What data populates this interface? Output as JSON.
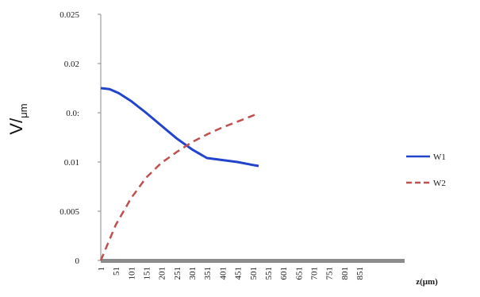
{
  "chart_data": {
    "type": "line",
    "ylabel_main": "V/",
    "ylabel_sub": "μm",
    "xlabel": "z(μm)",
    "ylim": [
      0,
      0.025
    ],
    "yticks": [
      "0",
      "0.005",
      "0.01",
      "0.0:",
      "0.02",
      "0.025"
    ],
    "ytick_values": [
      0,
      0.005,
      0.01,
      0.015,
      0.02,
      0.025
    ],
    "xlim": [
      1,
      900
    ],
    "xticks": [
      "1",
      "51",
      "101",
      "151",
      "201",
      "251",
      "301",
      "351",
      "401",
      "451",
      "501",
      "551",
      "601",
      "651",
      "701",
      "751",
      "801",
      "851"
    ],
    "xtick_values": [
      1,
      51,
      101,
      151,
      201,
      251,
      301,
      351,
      401,
      451,
      501,
      551,
      601,
      651,
      701,
      751,
      801,
      851
    ],
    "legend_position": "right",
    "series": [
      {
        "name": "W1",
        "color": "#2244cc",
        "dash": "solid",
        "x": [
          1,
          30,
          60,
          100,
          150,
          200,
          250,
          300,
          350,
          400,
          450,
          500,
          520
        ],
        "y": [
          0.0175,
          0.0174,
          0.017,
          0.0162,
          0.015,
          0.0137,
          0.0124,
          0.0113,
          0.0104,
          0.0102,
          0.01,
          0.0097,
          0.0096
        ]
      },
      {
        "name": "W2",
        "color": "#c0504d",
        "dash": "dashed",
        "x": [
          1,
          50,
          100,
          150,
          200,
          250,
          300,
          350,
          400,
          450,
          500,
          520
        ],
        "y": [
          0,
          0.0036,
          0.0063,
          0.0084,
          0.0099,
          0.011,
          0.012,
          0.0128,
          0.0135,
          0.0141,
          0.0147,
          0.015
        ]
      }
    ]
  }
}
